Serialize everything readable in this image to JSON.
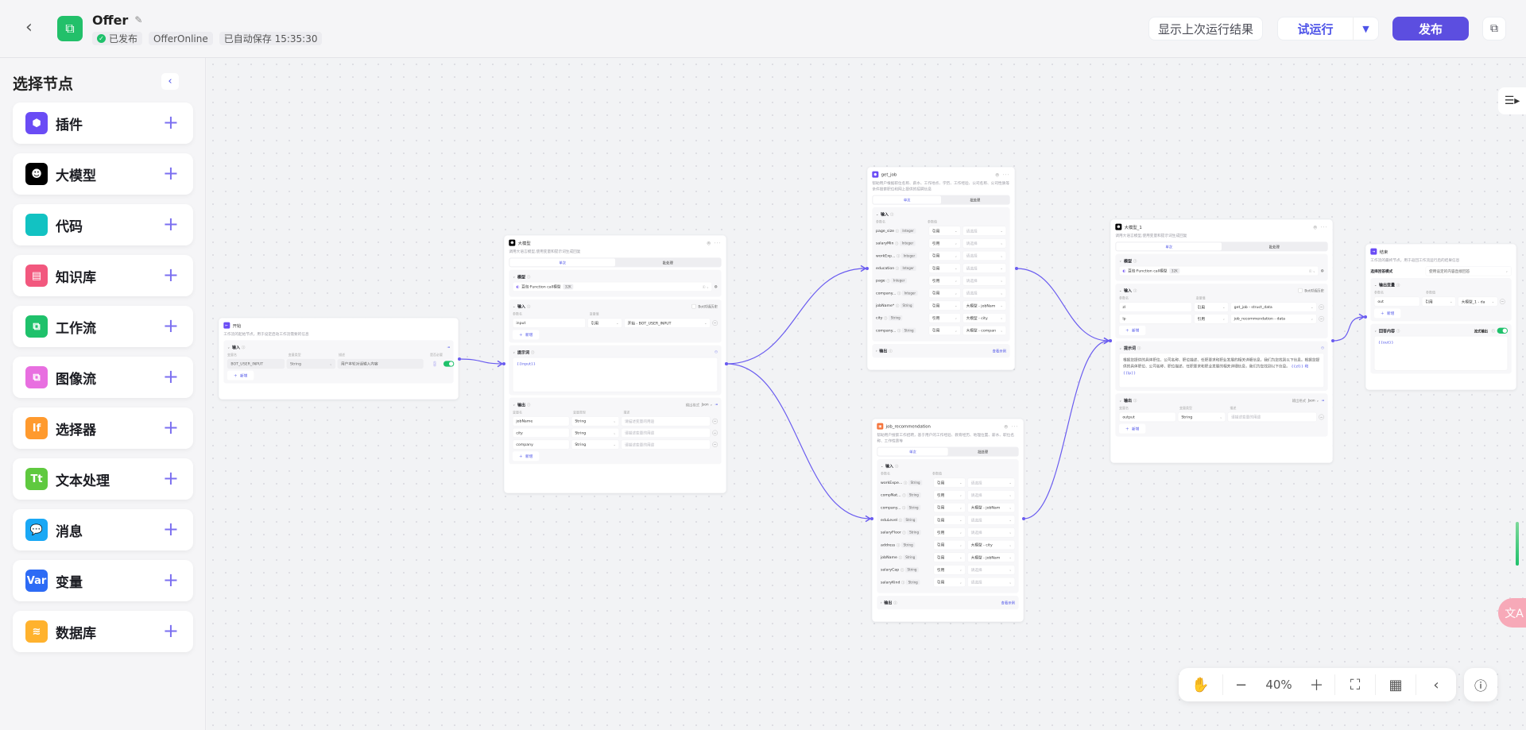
{
  "header": {
    "title": "Offer",
    "status": "已发布",
    "version": "OfferOnline",
    "autosave": "已自动保存 15:35:30",
    "show_last_run": "显示上次运行结果",
    "test_run": "试运行",
    "publish": "发布",
    "brand_color": "#5c4ee0",
    "status_color": "#1fc16b"
  },
  "sidebar": {
    "title": "选择节点",
    "items": [
      {
        "label": "插件",
        "icon": "cube-icon",
        "color": "#6a4cf5",
        "glyph": "⬢"
      },
      {
        "label": "大模型",
        "icon": "ghost-icon",
        "color": "#000000",
        "glyph": "☻"
      },
      {
        "label": "代码",
        "icon": "code-icon",
        "color": "#12c2c2",
        "glyph": "</>"
      },
      {
        "label": "知识库",
        "icon": "book-icon",
        "color": "#f2587e",
        "glyph": "▤"
      },
      {
        "label": "工作流",
        "icon": "workflow-icon",
        "color": "#1fc16b",
        "glyph": "⧉"
      },
      {
        "label": "图像流",
        "icon": "image-flow-icon",
        "color": "#e86fe0",
        "glyph": "⧉"
      },
      {
        "label": "选择器",
        "icon": "if-icon",
        "color": "#ff9a2e",
        "glyph": "If"
      },
      {
        "label": "文本处理",
        "icon": "text-icon",
        "color": "#5fc93f",
        "glyph": "Tt"
      },
      {
        "label": "消息",
        "icon": "message-icon",
        "color": "#1aa8f5",
        "glyph": "💬"
      },
      {
        "label": "变量",
        "icon": "variable-icon",
        "color": "#2d6bf5",
        "glyph": "Var"
      },
      {
        "label": "数据库",
        "icon": "database-icon",
        "color": "#ffb22e",
        "glyph": "≋"
      }
    ]
  },
  "common": {
    "add": "新增",
    "ref": "引用",
    "select_ph": "请选择",
    "desc_ph": "请描述变量的用途",
    "tab_single": "单次",
    "tab_batch": "批处理",
    "input": "输入",
    "output": "输出",
    "model": "模型",
    "prompt": "提示词",
    "bot_history": "Bot对话历史",
    "param_name": "参数名",
    "var_value": "变量值",
    "param_value": "参数值",
    "var_name": "变量名",
    "var_type": "变量类型",
    "describe": "描述",
    "required": "是否必要",
    "output_format": "输出格式",
    "json": "Json",
    "view_example": "查看示例"
  },
  "start": {
    "title": "开始",
    "desc": "工作流的起始节点，用于设定启动工作流需要的信息",
    "row": {
      "name": "BOT_USER_INPUT",
      "type": "String",
      "desc": "用户本轮对话输入内容"
    }
  },
  "llm": {
    "title": "大模型",
    "desc": "调用大语言模型,使用变量和提示词生成回复",
    "model": "豆包·Function call模型",
    "model_tag": "32K",
    "inputs": [
      {
        "name": "input",
        "value": "开始 - BOT_USER_INPUT"
      }
    ],
    "prompt": "{{input}}",
    "outputs": [
      {
        "name": "jobName",
        "type": "String"
      },
      {
        "name": "city",
        "type": "String"
      },
      {
        "name": "company",
        "type": "String"
      }
    ]
  },
  "get_job": {
    "title": "get_job",
    "desc": "帮助用户根据职位名称、薪水、工作地点、学历、工作经验、公司名称、公司性质等条件搜索职位和网上提供的招聘信息",
    "inputs": [
      {
        "name": "page_size",
        "type": "Integer",
        "value": ""
      },
      {
        "name": "salaryMin",
        "type": "Integer",
        "value": ""
      },
      {
        "name": "workExp...",
        "type": "Integer",
        "value": ""
      },
      {
        "name": "education",
        "type": "Integer",
        "value": ""
      },
      {
        "name": "page",
        "type": "Integer",
        "value": ""
      },
      {
        "name": "company...",
        "type": "Integer",
        "value": ""
      },
      {
        "name": "jobName*",
        "type": "String",
        "value": "大模型 - jobNam"
      },
      {
        "name": "city",
        "type": "String",
        "value": "大模型 - city"
      },
      {
        "name": "company...",
        "type": "String",
        "value": "大模型 - compan"
      }
    ]
  },
  "job_rec": {
    "title": "job_recommendation",
    "desc": "帮助用户搜索工作招聘，基于用户的工作经验、教育经历、地理位置、薪水、职位名称、工作性质等",
    "inputs": [
      {
        "name": "workExpe...",
        "type": "String",
        "value": ""
      },
      {
        "name": "compNat...",
        "type": "String",
        "value": ""
      },
      {
        "name": "company...",
        "type": "String",
        "value": "大模型 - jobNam"
      },
      {
        "name": "eduLevel",
        "type": "String",
        "value": ""
      },
      {
        "name": "salaryFloor",
        "type": "String",
        "value": ""
      },
      {
        "name": "address",
        "type": "String",
        "value": "大模型 - city"
      },
      {
        "name": "jobName",
        "type": "String",
        "value": "大模型 - jobNam"
      },
      {
        "name": "salaryCap",
        "type": "String",
        "value": ""
      },
      {
        "name": "salaryKind",
        "type": "String",
        "value": ""
      }
    ]
  },
  "llm1": {
    "title": "大模型_1",
    "desc": "调用大语言模型,使用变量和提示词生成回复",
    "model": "豆包·Function call模型",
    "model_tag": "32K",
    "inputs": [
      {
        "name": "zl",
        "value": "get_job - struct_data"
      },
      {
        "name": "lp",
        "value": "job_recommendation - data"
      }
    ],
    "prompt_text": "根据您提供的具体职位、公司名称、职位描述、任职要求和职业发展的相关详细信息，我们为您找到以下信息。根据您提供的具体职位、公司名称、职位描述、任职要求和职业发展的相关详细信息，我们为您找到以下信息。",
    "prompt_vars": "{{zl}} 和 {{lp}}",
    "outputs": [
      {
        "name": "output",
        "type": "String"
      }
    ]
  },
  "end": {
    "title": "结束",
    "desc": "工作流的最终节点，用于返回工作流运行后的结果信息",
    "mode_label": "选择回答模式",
    "mode": "使用设定的内容直接回答",
    "output_vars": "输出变量",
    "row": {
      "name": "out",
      "value": "大模型_1 - da"
    },
    "answer": "回答内容",
    "stream": "流式输出",
    "answer_text": "{{out}}"
  },
  "toolbar": {
    "zoom": "40%"
  },
  "edge_color": "#6a5cf0"
}
